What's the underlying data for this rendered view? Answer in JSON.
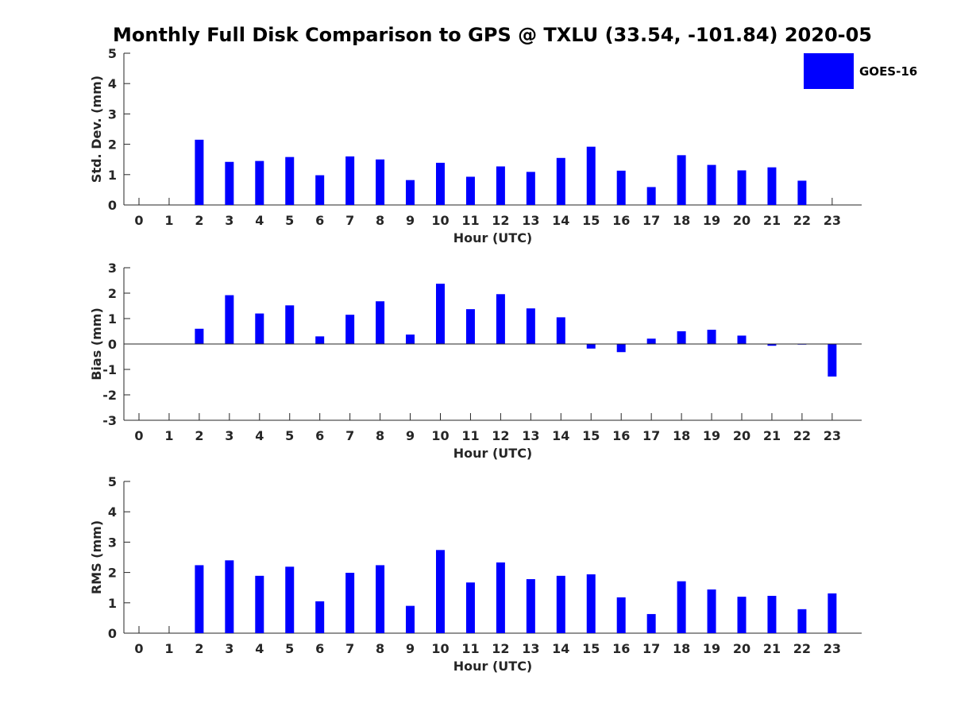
{
  "colors": {
    "bar": "#0000ff",
    "axis": "#262626"
  },
  "chart_data": {
    "title": "Monthly Full Disk Comparison to GPS @ TXLU (33.54, -101.84) 2020-05",
    "legend": {
      "label": "GOES-16",
      "placement": "top-right"
    },
    "panels": [
      {
        "type": "bar",
        "xlabel": "Hour (UTC)",
        "ylabel": "Std. Dev. (mm)",
        "ylim": [
          0,
          5
        ],
        "yticks": [
          0,
          1,
          2,
          3,
          4,
          5
        ],
        "categories": [
          0,
          1,
          2,
          3,
          4,
          5,
          6,
          7,
          8,
          9,
          10,
          11,
          12,
          13,
          14,
          15,
          16,
          17,
          18,
          19,
          20,
          21,
          22,
          23
        ],
        "values": [
          null,
          null,
          2.15,
          1.42,
          1.45,
          1.58,
          0.98,
          1.6,
          1.5,
          0.82,
          1.39,
          0.93,
          1.27,
          1.09,
          1.55,
          1.92,
          1.13,
          0.59,
          1.64,
          1.32,
          1.14,
          1.24,
          0.8,
          null
        ]
      },
      {
        "type": "bar",
        "xlabel": "Hour (UTC)",
        "ylabel": "Bias (mm)",
        "ylim": [
          -3,
          3
        ],
        "yticks": [
          -3,
          -2,
          -1,
          0,
          1,
          2,
          3
        ],
        "categories": [
          0,
          1,
          2,
          3,
          4,
          5,
          6,
          7,
          8,
          9,
          10,
          11,
          12,
          13,
          14,
          15,
          16,
          17,
          18,
          19,
          20,
          21,
          22,
          23
        ],
        "values": [
          null,
          null,
          0.6,
          1.92,
          1.2,
          1.52,
          0.3,
          1.15,
          1.68,
          0.37,
          2.37,
          1.37,
          1.96,
          1.4,
          1.05,
          -0.18,
          -0.32,
          0.21,
          0.5,
          0.56,
          0.33,
          -0.07,
          -0.02,
          -1.28
        ]
      },
      {
        "type": "bar",
        "xlabel": "Hour (UTC)",
        "ylabel": "RMS (mm)",
        "ylim": [
          0,
          5
        ],
        "yticks": [
          0,
          1,
          2,
          3,
          4,
          5
        ],
        "categories": [
          0,
          1,
          2,
          3,
          4,
          5,
          6,
          7,
          8,
          9,
          10,
          11,
          12,
          13,
          14,
          15,
          16,
          17,
          18,
          19,
          20,
          21,
          22,
          23
        ],
        "values": [
          null,
          null,
          2.24,
          2.4,
          1.89,
          2.19,
          1.05,
          1.99,
          2.24,
          0.9,
          2.74,
          1.67,
          2.33,
          1.78,
          1.89,
          1.94,
          1.18,
          0.63,
          1.71,
          1.44,
          1.2,
          1.23,
          0.79,
          1.31
        ]
      }
    ]
  }
}
